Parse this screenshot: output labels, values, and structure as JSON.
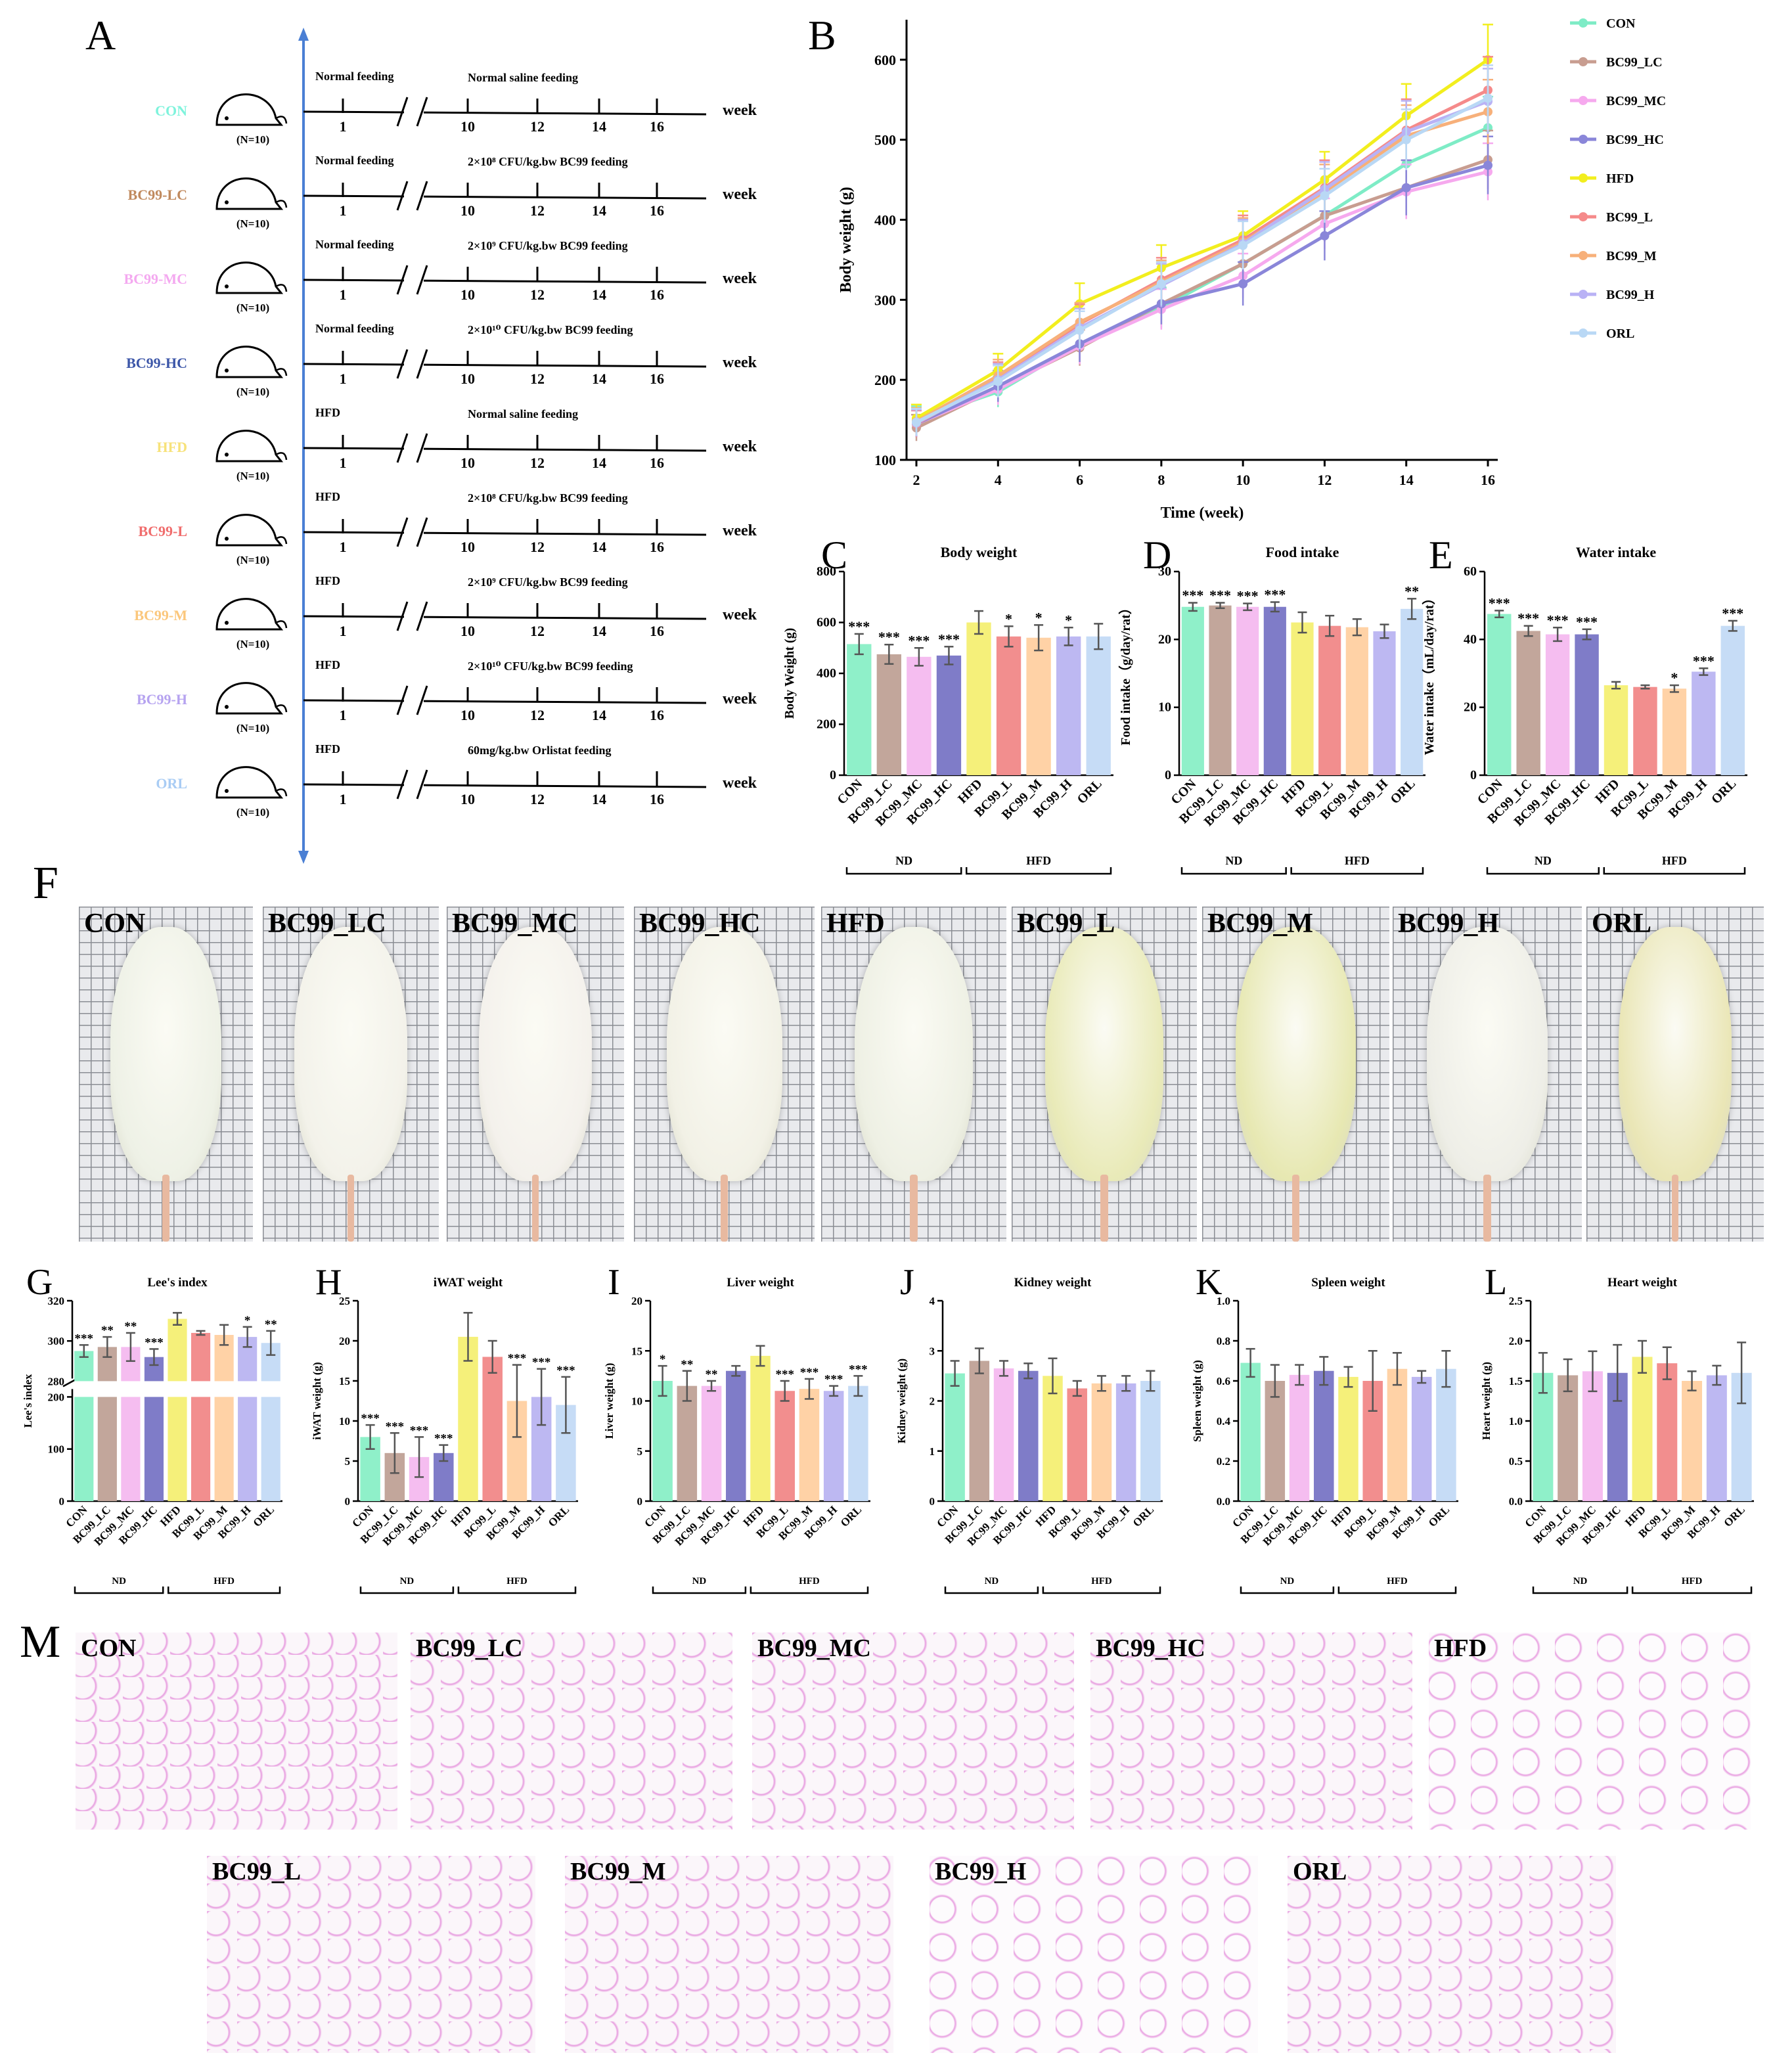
{
  "panel_letters": [
    "A",
    "B",
    "C",
    "D",
    "E",
    "F",
    "G",
    "H",
    "I",
    "J",
    "K",
    "L",
    "M"
  ],
  "colors": {
    "CON": "#8ff0c9",
    "BC99_LC": "#c2a69b",
    "BC99_MC": "#f5bdf0",
    "BC99_HC": "#7f7cc8",
    "HFD": "#f5f07a",
    "BC99_L": "#f28e8e",
    "BC99_M": "#ffd2a6",
    "BC99_H": "#bdb8f2",
    "ORL": "#c6dcf6",
    "line_CON": "#7eecc6",
    "line_BC99_LC": "#c89d90",
    "line_BC99_MC": "#f6a9ee",
    "line_BC99_HC": "#8a86d9",
    "line_HFD": "#f2ee1e",
    "line_BC99_L": "#f58a8a",
    "line_BC99_M": "#f7b07a",
    "line_BC99_H": "#b9b2f5",
    "line_ORL": "#b9d8f5",
    "axis_blue": "#4a7fd4"
  },
  "schema": {
    "rows": [
      {
        "group": "CON",
        "group_color": "#7ef3dc",
        "n": "(N=10)",
        "pre": "Normal feeding",
        "post": "Normal saline feeding"
      },
      {
        "group": "BC99-LC",
        "group_color": "#c08a5e",
        "n": "(N=10)",
        "pre": "Normal feeding",
        "post": "2×10⁸ CFU/kg.bw BC99 feeding"
      },
      {
        "group": "BC99-MC",
        "group_color": "#f4a9f0",
        "n": "(N=10)",
        "pre": "Normal feeding",
        "post": "2×10⁹ CFU/kg.bw BC99 feeding"
      },
      {
        "group": "BC99-HC",
        "group_color": "#3c56a8",
        "n": "(N=10)",
        "pre": "Normal feeding",
        "post": "2×10¹⁰ CFU/kg.bw BC99 feeding"
      },
      {
        "group": "HFD",
        "group_color": "#f7e27a",
        "n": "(N=10)",
        "pre": "HFD",
        "post": "Normal saline feeding"
      },
      {
        "group": "BC99-L",
        "group_color": "#f06d6d",
        "n": "(N=10)",
        "pre": "HFD",
        "post": "2×10⁸ CFU/kg.bw BC99 feeding"
      },
      {
        "group": "BC99-M",
        "group_color": "#fbc77c",
        "n": "(N=10)",
        "pre": "HFD",
        "post": "2×10⁹ CFU/kg.bw BC99 feeding"
      },
      {
        "group": "BC99-H",
        "group_color": "#b6a3f0",
        "n": "(N=10)",
        "pre": "HFD",
        "post": "2×10¹⁰ CFU/kg.bw BC99 feeding"
      },
      {
        "group": "ORL",
        "group_color": "#a9ccf4",
        "n": "(N=10)",
        "pre": "HFD",
        "post": "60mg/kg.bw Orlistat feeding"
      }
    ],
    "ticks": [
      "1",
      "10",
      "12",
      "14",
      "16"
    ],
    "axis_label": "week"
  },
  "chart_data": [
    {
      "id": "B",
      "type": "line",
      "title": "",
      "xlabel": "Time (week)",
      "ylabel": "Body weight (g)",
      "x": [
        2,
        4,
        6,
        8,
        10,
        12,
        14,
        16
      ],
      "xlim": [
        2,
        16
      ],
      "ylim": [
        100,
        650
      ],
      "yticks": [
        100,
        200,
        300,
        400,
        500,
        600
      ],
      "series": [
        {
          "name": "CON",
          "values": [
            150,
            185,
            245,
            290,
            345,
            405,
            470,
            515
          ]
        },
        {
          "name": "BC99_LC",
          "values": [
            140,
            190,
            240,
            295,
            345,
            405,
            440,
            475
          ]
        },
        {
          "name": "BC99_MC",
          "values": [
            145,
            188,
            242,
            288,
            330,
            395,
            435,
            460
          ]
        },
        {
          "name": "BC99_HC",
          "values": [
            145,
            192,
            245,
            295,
            320,
            380,
            440,
            468
          ]
        },
        {
          "name": "HFD",
          "values": [
            152,
            212,
            295,
            340,
            380,
            450,
            530,
            600
          ]
        },
        {
          "name": "BC99_L",
          "values": [
            145,
            202,
            270,
            325,
            375,
            440,
            512,
            562
          ]
        },
        {
          "name": "BC99_M",
          "values": [
            148,
            205,
            272,
            322,
            372,
            435,
            505,
            535
          ]
        },
        {
          "name": "BC99_H",
          "values": [
            146,
            200,
            265,
            318,
            370,
            438,
            510,
            548
          ]
        },
        {
          "name": "ORL",
          "values": [
            147,
            198,
            262,
            320,
            368,
            430,
            500,
            552
          ]
        }
      ],
      "legend": [
        "CON",
        "BC99_LC",
        "BC99_MC",
        "BC99_HC",
        "HFD",
        "BC99_L",
        "BC99_M",
        "BC99_H",
        "ORL"
      ]
    },
    {
      "id": "C",
      "type": "bar",
      "title": "Body weight",
      "ylabel": "Body Weight (g)",
      "categories": [
        "CON",
        "BC99_LC",
        "BC99_MC",
        "BC99_HC",
        "HFD",
        "BC99_L",
        "BC99_M",
        "BC99_H",
        "ORL"
      ],
      "values": [
        515,
        475,
        465,
        470,
        600,
        545,
        540,
        545,
        545
      ],
      "errors": [
        40,
        38,
        35,
        35,
        45,
        40,
        50,
        35,
        50
      ],
      "sig": [
        "***",
        "***",
        "***",
        "***",
        "",
        "*",
        "*",
        "*",
        ""
      ],
      "ylim": [
        0,
        800
      ],
      "yticks": [
        0,
        200,
        400,
        600,
        800
      ],
      "groups": [
        {
          "label": "ND",
          "span": [
            0,
            3
          ]
        },
        {
          "label": "HFD",
          "span": [
            4,
            8
          ]
        }
      ]
    },
    {
      "id": "D",
      "type": "bar",
      "title": "Food intake",
      "ylabel": "Food intake（g/day/rat）",
      "categories": [
        "CON",
        "BC99_LC",
        "BC99_MC",
        "BC99_HC",
        "HFD",
        "BC99_L",
        "BC99_M",
        "BC99_H",
        "ORL"
      ],
      "values": [
        24.8,
        25.0,
        24.8,
        24.8,
        22.5,
        22.0,
        21.8,
        21.2,
        24.5
      ],
      "errors": [
        0.6,
        0.4,
        0.5,
        0.7,
        1.5,
        1.5,
        1.2,
        1.0,
        1.5
      ],
      "sig": [
        "***",
        "***",
        "***",
        "***",
        "",
        "",
        "",
        "",
        "**"
      ],
      "ylim": [
        0,
        30
      ],
      "yticks": [
        0,
        10,
        20,
        30
      ],
      "groups": [
        {
          "label": "ND",
          "span": [
            0,
            3
          ]
        },
        {
          "label": "HFD",
          "span": [
            4,
            8
          ]
        }
      ]
    },
    {
      "id": "E",
      "type": "bar",
      "title": "Water intake",
      "ylabel": "Water intake（mL/day/rat）",
      "categories": [
        "CON",
        "BC99_LC",
        "BC99_MC",
        "BC99_HC",
        "HFD",
        "BC99_L",
        "BC99_M",
        "BC99_H",
        "ORL"
      ],
      "values": [
        47.5,
        42.5,
        41.5,
        41.5,
        26.5,
        26.0,
        25.5,
        30.5,
        44.0
      ],
      "errors": [
        1.0,
        1.5,
        2.0,
        1.5,
        1.0,
        0.5,
        1.0,
        1.0,
        1.5
      ],
      "sig": [
        "***",
        "***",
        "***",
        "***",
        "",
        "",
        "*",
        "***",
        "***"
      ],
      "ylim": [
        0,
        60
      ],
      "yticks": [
        0,
        20,
        40,
        60
      ],
      "groups": [
        {
          "label": "ND",
          "span": [
            0,
            3
          ]
        },
        {
          "label": "HFD",
          "span": [
            4,
            8
          ]
        }
      ]
    },
    {
      "id": "G",
      "type": "bar",
      "title": "Lee's index",
      "ylabel": "Lee's index",
      "categories": [
        "CON",
        "BC99_LC",
        "BC99_MC",
        "BC99_HC",
        "HFD",
        "BC99_L",
        "BC99_M",
        "BC99_H",
        "ORL"
      ],
      "values": [
        295,
        297,
        297,
        292,
        311,
        304,
        303,
        302,
        299
      ],
      "errors": [
        3,
        5,
        7,
        4,
        3,
        1,
        5,
        5,
        6
      ],
      "sig": [
        "***",
        "**",
        "**",
        "***",
        "",
        "",
        "",
        "*",
        "**"
      ],
      "ylim": [
        0,
        320
      ],
      "yticks": [
        0,
        100,
        200,
        280,
        300,
        320
      ],
      "axis_break": true,
      "groups": [
        {
          "label": "ND",
          "span": [
            0,
            3
          ]
        },
        {
          "label": "HFD",
          "span": [
            4,
            8
          ]
        }
      ]
    },
    {
      "id": "H",
      "type": "bar",
      "title": "iWAT weight",
      "ylabel": "iWAT weight (g)",
      "categories": [
        "CON",
        "BC99_LC",
        "BC99_MC",
        "BC99_HC",
        "HFD",
        "BC99_L",
        "BC99_M",
        "BC99_H",
        "ORL"
      ],
      "values": [
        8.0,
        6.0,
        5.5,
        6.0,
        20.5,
        18.0,
        12.5,
        13.0,
        12.0
      ],
      "errors": [
        1.5,
        2.5,
        2.5,
        1.0,
        3.0,
        2.0,
        4.5,
        3.5,
        3.5
      ],
      "sig": [
        "***",
        "***",
        "***",
        "***",
        "",
        "",
        "***",
        "***",
        "***"
      ],
      "ylim": [
        0,
        25
      ],
      "yticks": [
        0,
        5,
        10,
        15,
        20,
        25
      ],
      "groups": [
        {
          "label": "ND",
          "span": [
            0,
            3
          ]
        },
        {
          "label": "HFD",
          "span": [
            4,
            8
          ]
        }
      ]
    },
    {
      "id": "I",
      "type": "bar",
      "title": "Liver weight",
      "ylabel": "Liver weight (g)",
      "categories": [
        "CON",
        "BC99_LC",
        "BC99_MC",
        "BC99_HC",
        "HFD",
        "BC99_L",
        "BC99_M",
        "BC99_H",
        "ORL"
      ],
      "values": [
        12.0,
        11.5,
        11.5,
        13.0,
        14.5,
        11.0,
        11.2,
        11.0,
        11.5
      ],
      "errors": [
        1.5,
        1.5,
        0.5,
        0.5,
        1.0,
        1.0,
        1.0,
        0.5,
        1.0
      ],
      "sig": [
        "*",
        "**",
        "**",
        "",
        "",
        "***",
        "***",
        "***",
        "***"
      ],
      "ylim": [
        0,
        20
      ],
      "yticks": [
        0,
        5,
        10,
        15,
        20
      ],
      "groups": [
        {
          "label": "ND",
          "span": [
            0,
            3
          ]
        },
        {
          "label": "HFD",
          "span": [
            4,
            8
          ]
        }
      ]
    },
    {
      "id": "J",
      "type": "bar",
      "title": "Kidney weight",
      "ylabel": "Kidney weight (g)",
      "categories": [
        "CON",
        "BC99_LC",
        "BC99_MC",
        "BC99_HC",
        "HFD",
        "BC99_L",
        "BC99_M",
        "BC99_H",
        "ORL"
      ],
      "values": [
        2.55,
        2.8,
        2.65,
        2.6,
        2.5,
        2.25,
        2.35,
        2.35,
        2.4
      ],
      "errors": [
        0.25,
        0.25,
        0.15,
        0.15,
        0.35,
        0.15,
        0.15,
        0.15,
        0.2
      ],
      "sig": [
        "",
        "",
        "",
        "",
        "",
        "",
        "",
        "",
        ""
      ],
      "ylim": [
        0,
        4
      ],
      "yticks": [
        0,
        1,
        2,
        3,
        4
      ],
      "groups": [
        {
          "label": "ND",
          "span": [
            0,
            3
          ]
        },
        {
          "label": "HFD",
          "span": [
            4,
            8
          ]
        }
      ]
    },
    {
      "id": "K",
      "type": "bar",
      "title": "Spleen weight",
      "ylabel": "Spleen weight (g)",
      "categories": [
        "CON",
        "BC99_LC",
        "BC99_MC",
        "BC99_HC",
        "HFD",
        "BC99_L",
        "BC99_M",
        "BC99_H",
        "ORL"
      ],
      "values": [
        0.69,
        0.6,
        0.63,
        0.65,
        0.62,
        0.6,
        0.66,
        0.62,
        0.66
      ],
      "errors": [
        0.07,
        0.08,
        0.05,
        0.07,
        0.05,
        0.15,
        0.08,
        0.03,
        0.09
      ],
      "sig": [
        "",
        "",
        "",
        "",
        "",
        "",
        "",
        "",
        ""
      ],
      "ylim": [
        0,
        1.0
      ],
      "yticks": [
        0.0,
        0.2,
        0.4,
        0.6,
        0.8,
        1.0
      ],
      "groups": [
        {
          "label": "ND",
          "span": [
            0,
            3
          ]
        },
        {
          "label": "HFD",
          "span": [
            4,
            8
          ]
        }
      ]
    },
    {
      "id": "L",
      "type": "bar",
      "title": "Heart weight",
      "ylabel": "Heart weight (g)",
      "categories": [
        "CON",
        "BC99_LC",
        "BC99_MC",
        "BC99_HC",
        "HFD",
        "BC99_L",
        "BC99_M",
        "BC99_H",
        "ORL"
      ],
      "values": [
        1.6,
        1.57,
        1.62,
        1.6,
        1.8,
        1.72,
        1.5,
        1.57,
        1.6
      ],
      "errors": [
        0.25,
        0.2,
        0.25,
        0.35,
        0.2,
        0.2,
        0.12,
        0.12,
        0.38
      ],
      "sig": [
        "",
        "",
        "",
        "",
        "",
        "",
        "",
        "",
        ""
      ],
      "ylim": [
        0,
        2.5
      ],
      "yticks": [
        0.0,
        0.5,
        1.0,
        1.5,
        2.0,
        2.5
      ],
      "groups": [
        {
          "label": "ND",
          "span": [
            0,
            3
          ]
        },
        {
          "label": "HFD",
          "span": [
            4,
            8
          ]
        }
      ]
    }
  ],
  "photos_F": [
    "CON",
    "BC99_LC",
    "BC99_MC",
    "BC99_HC",
    "HFD",
    "BC99_L",
    "BC99_M",
    "BC99_H",
    "ORL"
  ],
  "histology_M": [
    "CON",
    "BC99_LC",
    "BC99_MC",
    "BC99_HC",
    "HFD",
    "BC99_L",
    "BC99_M",
    "BC99_H",
    "ORL"
  ]
}
